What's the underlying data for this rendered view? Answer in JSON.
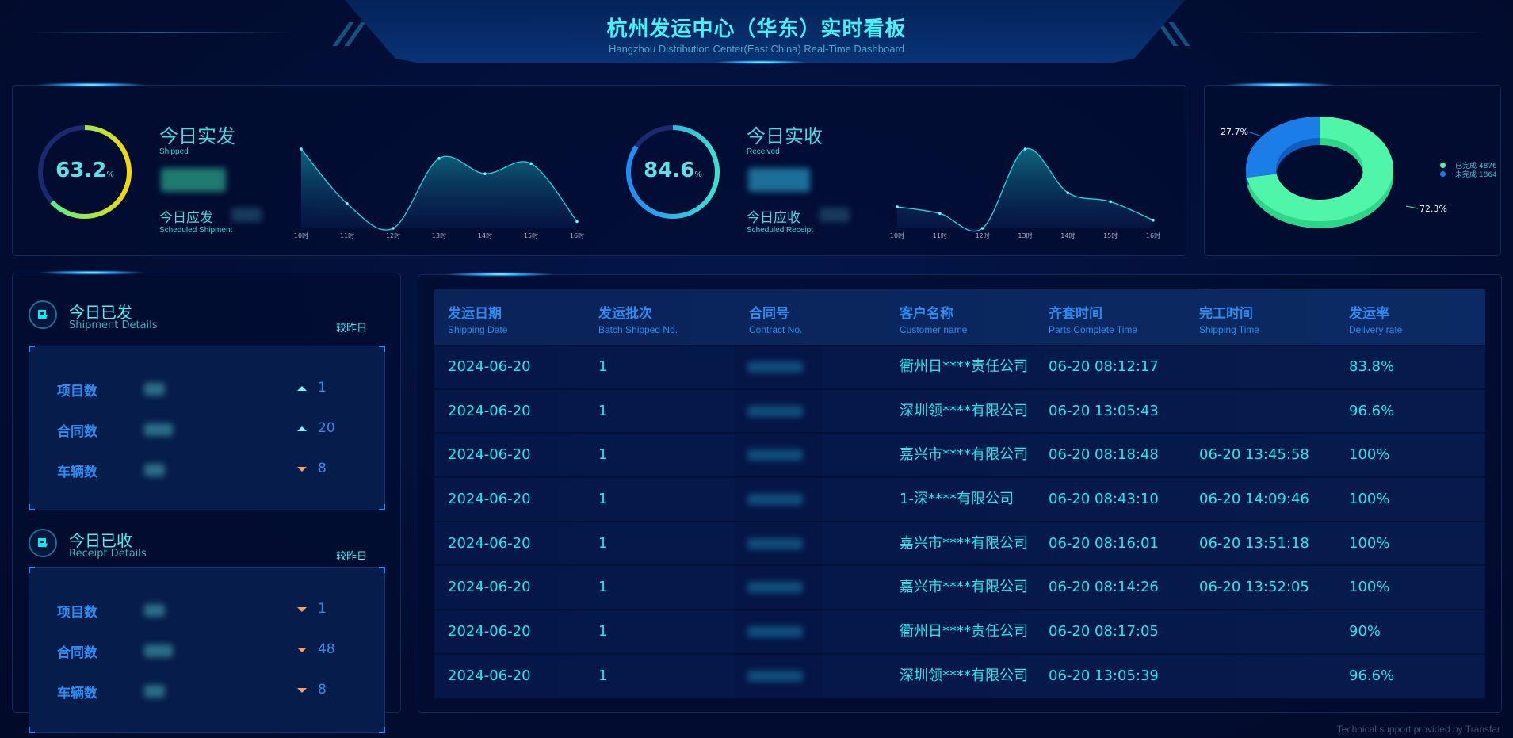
{
  "header": {
    "title": "杭州发运中心（华东）实时看板",
    "subtitle": "Hangzhou Distribution Center(East China) Real-Time Dashboard"
  },
  "shipped": {
    "gauge_value": "63.2",
    "gauge_percent": 63.2,
    "gauge_unit": "%",
    "title": "今日实发",
    "title_en": "Shipped",
    "scheduled_label": "今日应发",
    "scheduled_en": "Scheduled Shipment",
    "colors": {
      "start": "#3df5a0",
      "end": "#f4d80a"
    }
  },
  "received": {
    "gauge_value": "84.6",
    "gauge_percent": 84.6,
    "gauge_unit": "%",
    "title": "今日实收",
    "title_en": "Received",
    "scheduled_label": "今日应收",
    "scheduled_en": "Scheduled Receipt",
    "colors": {
      "start": "#1e8cf5",
      "end": "#3de0d0"
    }
  },
  "chart_data": [
    {
      "type": "area",
      "x": [
        "10时",
        "11时",
        "12时",
        "13时",
        "14时",
        "15时",
        "16时"
      ],
      "values": [
        93,
        29,
        0,
        82,
        64,
        76,
        8
      ],
      "color": "#1fd6e0"
    },
    {
      "type": "area",
      "x": [
        "10时",
        "11时",
        "12时",
        "13时",
        "14时",
        "15时",
        "16时"
      ],
      "values": [
        29,
        20,
        0,
        107,
        48,
        36,
        11
      ],
      "color": "#1fd6e0"
    },
    {
      "type": "pie",
      "donut": true,
      "slices": [
        {
          "name": "已完成",
          "value": 4876,
          "label": "72.3%",
          "color": "#4ff5a8"
        },
        {
          "name": "未完成",
          "value": 1864,
          "label": "27.7%",
          "color": "#1a7de8"
        }
      ],
      "legend": "right",
      "legend_entries": [
        "已完成 4876",
        "未完成 1864"
      ]
    }
  ],
  "shipment_details": {
    "title": "今日已发",
    "title_en": "Shipment Details",
    "compare_label": "较昨日",
    "icon": "shipment-box-icon",
    "rows": [
      {
        "label": "项目数",
        "trend": "up",
        "delta": "1"
      },
      {
        "label": "合同数",
        "trend": "up",
        "delta": "20"
      },
      {
        "label": "车辆数",
        "trend": "down",
        "delta": "8"
      }
    ]
  },
  "receipt_details": {
    "title": "今日已收",
    "title_en": "Receipt Details",
    "compare_label": "较昨日",
    "icon": "receipt-hand-icon",
    "rows": [
      {
        "label": "项目数",
        "trend": "down",
        "delta": "1"
      },
      {
        "label": "合同数",
        "trend": "down",
        "delta": "48"
      },
      {
        "label": "车辆数",
        "trend": "down",
        "delta": "8"
      }
    ]
  },
  "table": {
    "columns": [
      {
        "cn": "发运日期",
        "en": "Shipping Date"
      },
      {
        "cn": "发运批次",
        "en": "Batch Shipped No."
      },
      {
        "cn": "合同号",
        "en": "Contract No."
      },
      {
        "cn": "客户名称",
        "en": "Customer name"
      },
      {
        "cn": "齐套时间",
        "en": "Parts Complete Time"
      },
      {
        "cn": "完工时间",
        "en": "Shipping Time"
      },
      {
        "cn": "发运率",
        "en": "Delivery rate"
      }
    ],
    "rows": [
      [
        "2024-06-20",
        "1",
        "",
        "衢州日****责任公司",
        "06-20 08:12:17",
        "",
        "83.8%"
      ],
      [
        "2024-06-20",
        "1",
        "",
        "深圳领****有限公司",
        "06-20 13:05:43",
        "",
        "96.6%"
      ],
      [
        "2024-06-20",
        "1",
        "",
        "嘉兴市****有限公司",
        "06-20 08:18:48",
        "06-20 13:45:58",
        "100%"
      ],
      [
        "2024-06-20",
        "1",
        "",
        "1-深****有限公司",
        "06-20 08:43:10",
        "06-20 14:09:46",
        "100%"
      ],
      [
        "2024-06-20",
        "1",
        "",
        "嘉兴市****有限公司",
        "06-20 08:16:01",
        "06-20 13:51:18",
        "100%"
      ],
      [
        "2024-06-20",
        "1",
        "",
        "嘉兴市****有限公司",
        "06-20 08:14:26",
        "06-20 13:52:05",
        "100%"
      ],
      [
        "2024-06-20",
        "1",
        "",
        "衢州日****责任公司",
        "06-20 08:17:05",
        "",
        "90%"
      ],
      [
        "2024-06-20",
        "1",
        "",
        "深圳领****有限公司",
        "06-20 13:05:39",
        "",
        "96.6%"
      ]
    ]
  },
  "footer": {
    "text": "Technical support provided by Transfar"
  }
}
